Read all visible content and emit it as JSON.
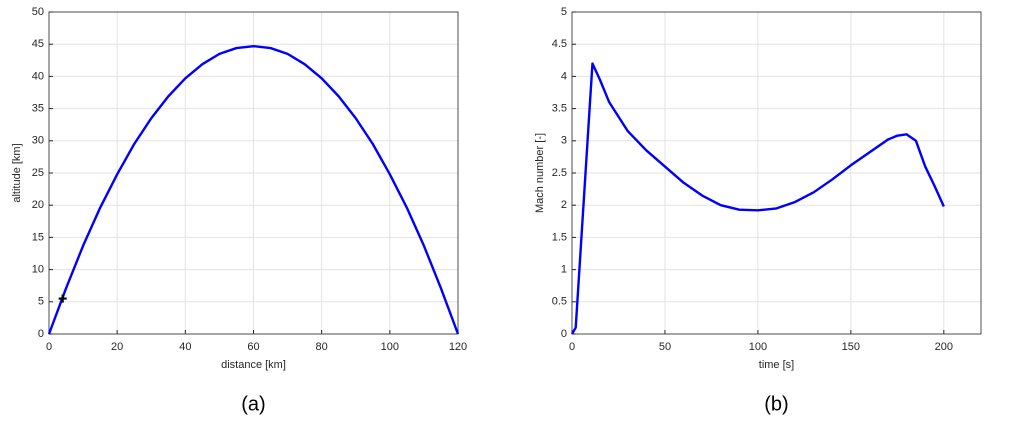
{
  "chart_data": [
    {
      "type": "line",
      "caption": "(a)",
      "xlabel": "distance [km]",
      "ylabel": "altitude [km]",
      "xlim": [
        0,
        120
      ],
      "ylim": [
        0,
        50
      ],
      "xticks": [
        0,
        20,
        40,
        60,
        80,
        100,
        120
      ],
      "yticks": [
        0,
        5,
        10,
        15,
        20,
        25,
        30,
        35,
        40,
        45,
        50
      ],
      "grid": true,
      "series": [
        {
          "color": "#0000ff",
          "x": [
            0,
            5,
            10,
            15,
            20,
            25,
            30,
            35,
            40,
            45,
            50,
            55,
            60,
            65,
            70,
            75,
            80,
            85,
            90,
            95,
            100,
            105,
            110,
            115,
            120
          ],
          "values": [
            0,
            7.1,
            13.7,
            19.6,
            24.8,
            29.5,
            33.5,
            36.9,
            39.7,
            41.9,
            43.5,
            44.4,
            44.7,
            44.4,
            43.5,
            41.9,
            39.7,
            36.9,
            33.5,
            29.5,
            24.8,
            19.6,
            13.7,
            7.1,
            0
          ]
        },
        {
          "color": "#000000",
          "marker": "+",
          "x": [
            4
          ],
          "values": [
            5.5
          ]
        }
      ]
    },
    {
      "type": "line",
      "caption": "(b)",
      "xlabel": "time [s]",
      "ylabel": "Mach number [-]",
      "xlim": [
        0,
        220
      ],
      "ylim": [
        0,
        5
      ],
      "xticks": [
        0,
        50,
        100,
        150,
        200
      ],
      "yticks": [
        0,
        0.5,
        1,
        1.5,
        2,
        2.5,
        3,
        3.5,
        4,
        4.5,
        5
      ],
      "grid": true,
      "series": [
        {
          "color": "#0000ff",
          "x": [
            0,
            2,
            11,
            15,
            20,
            30,
            40,
            50,
            60,
            70,
            80,
            90,
            100,
            110,
            120,
            130,
            140,
            150,
            160,
            170,
            175,
            180,
            185,
            190,
            195,
            200
          ],
          "values": [
            0,
            0.1,
            4.2,
            3.95,
            3.6,
            3.15,
            2.85,
            2.6,
            2.35,
            2.15,
            2.0,
            1.93,
            1.92,
            1.95,
            2.05,
            2.2,
            2.4,
            2.62,
            2.82,
            3.02,
            3.08,
            3.1,
            3.0,
            2.6,
            2.3,
            1.98
          ]
        }
      ]
    }
  ]
}
